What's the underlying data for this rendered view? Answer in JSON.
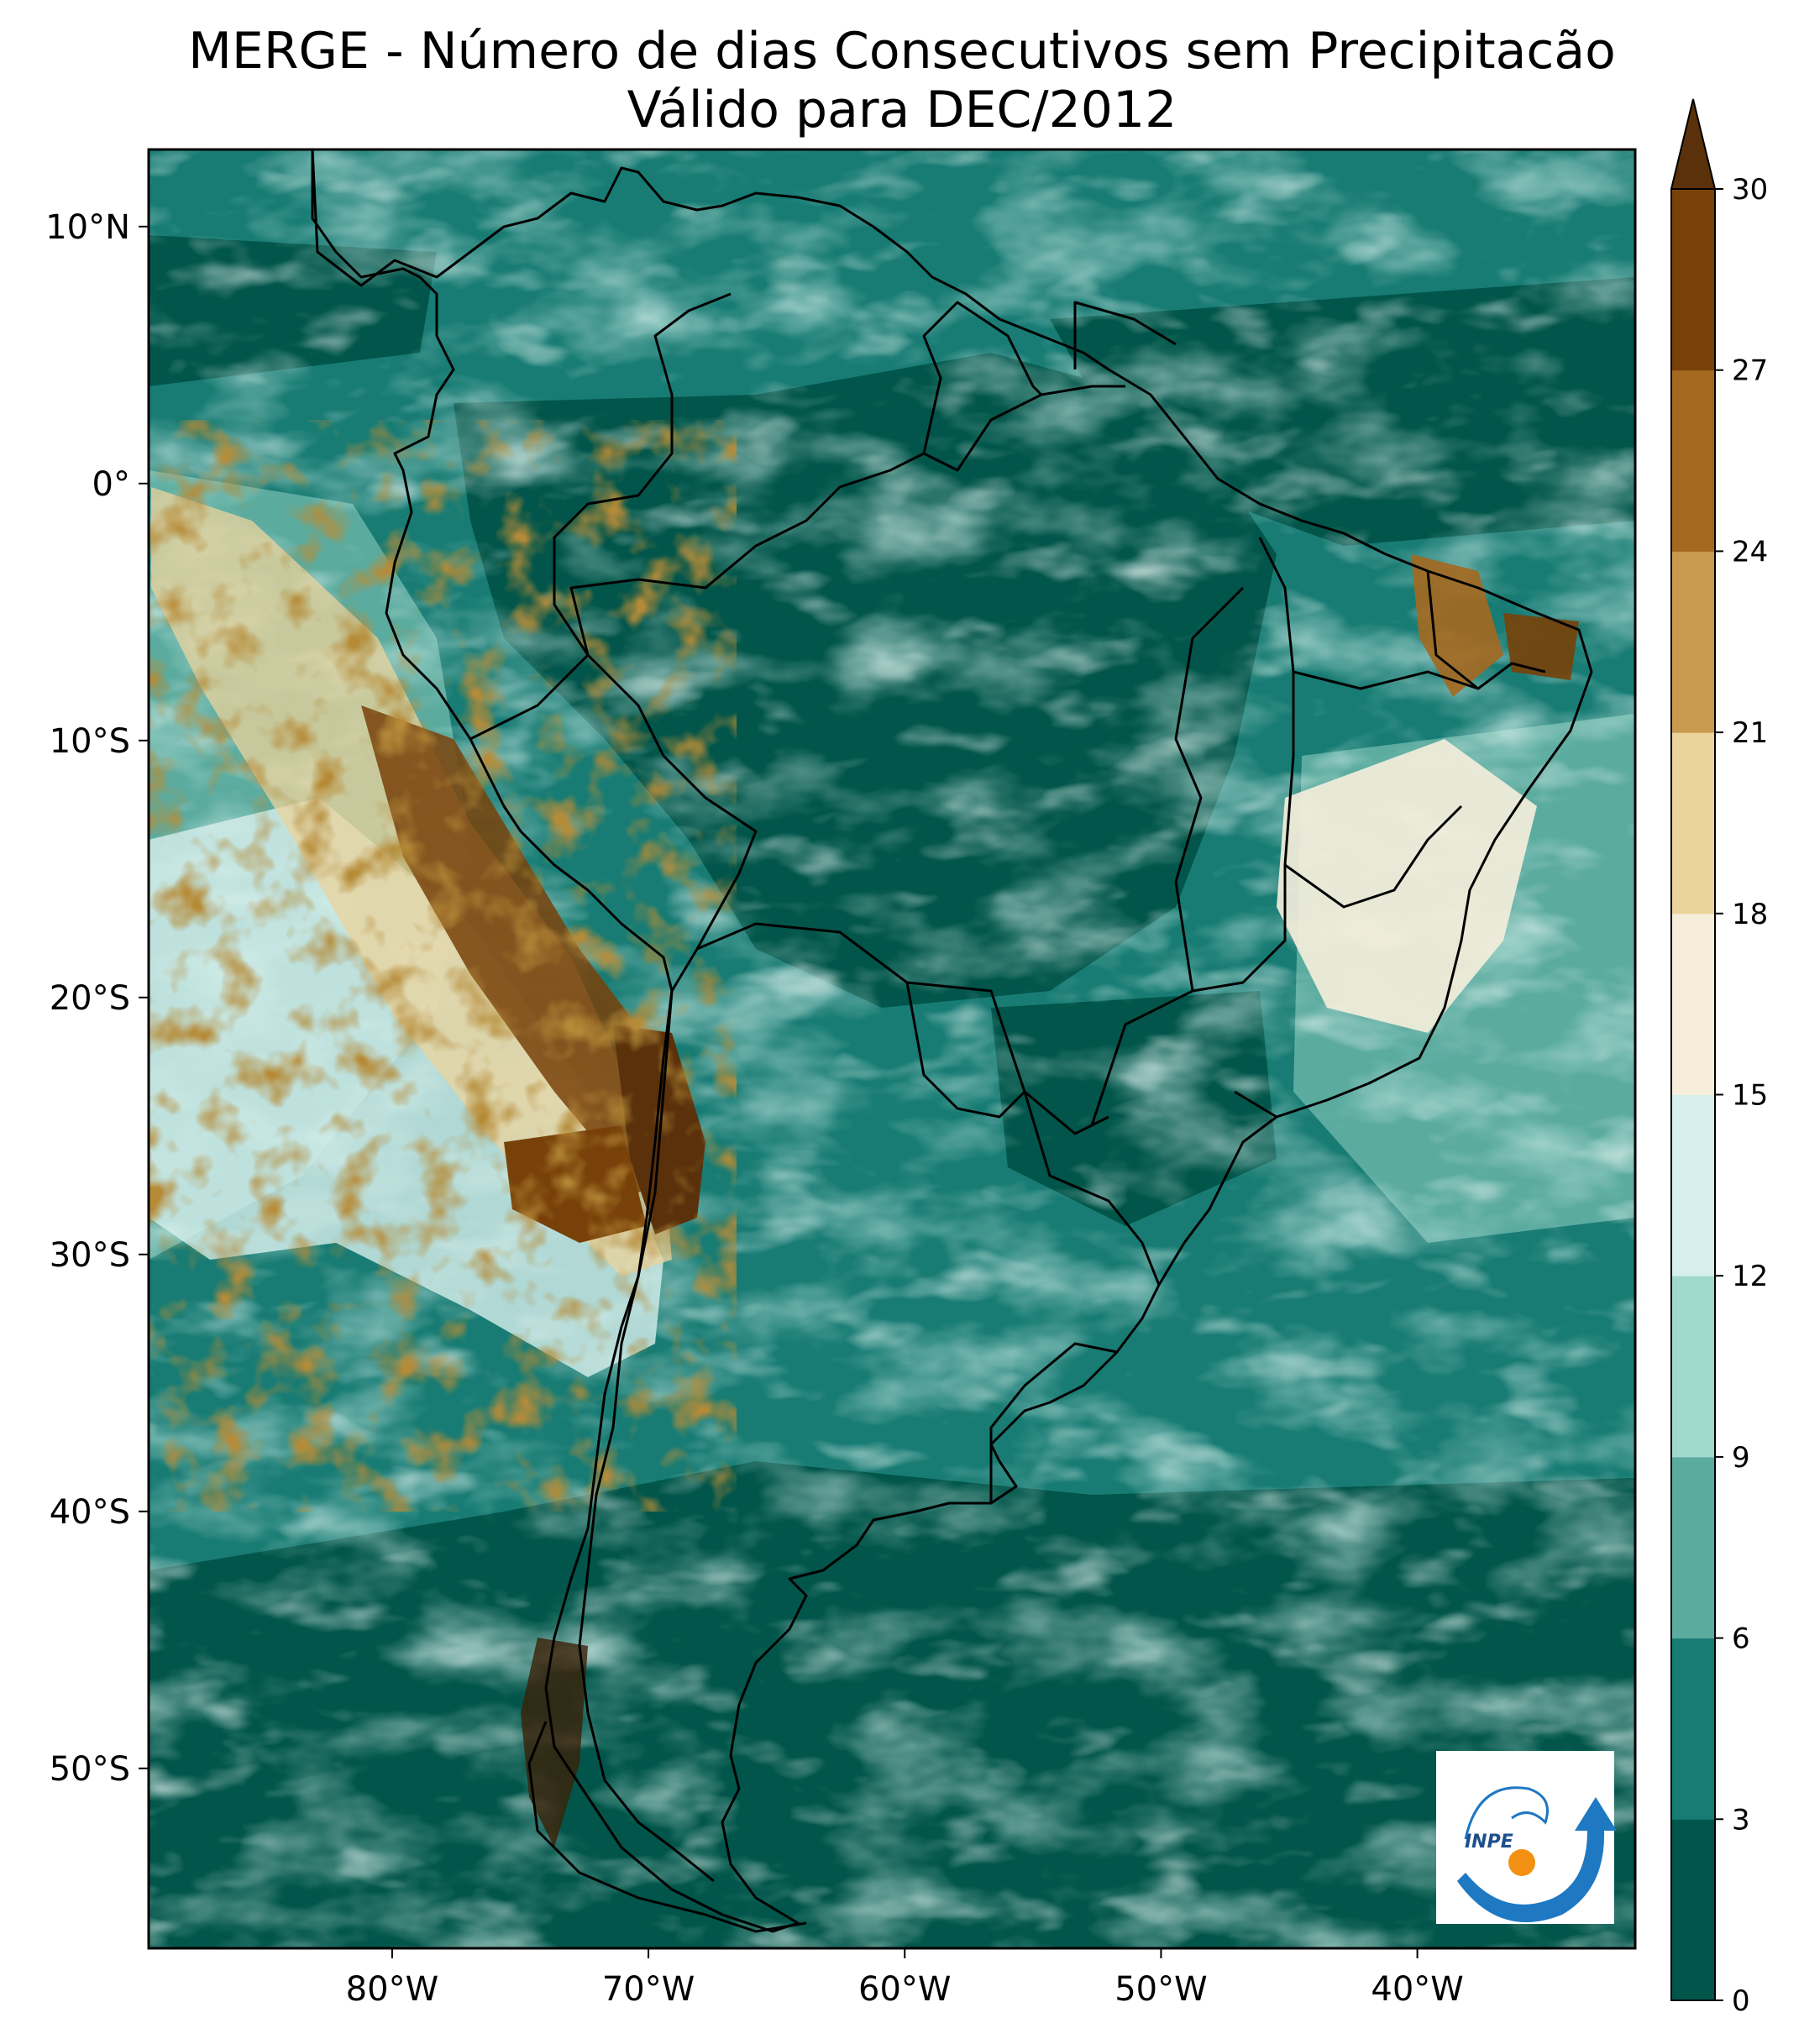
{
  "title": {
    "line1": "MERGE - Número de dias Consecutivos sem Precipitacão",
    "line2": "Válido para DEC/2012"
  },
  "map": {
    "lon_ticks": [
      "80°W",
      "70°W",
      "60°W",
      "50°W",
      "40°W"
    ],
    "lat_ticks": [
      "10°N",
      "0°",
      "10°S",
      "20°S",
      "30°S",
      "40°S",
      "50°S"
    ],
    "extent": {
      "lon_min": -89.5,
      "lon_max": -31.5,
      "lat_min": -57,
      "lat_max": 13
    },
    "border_color": "#000000"
  },
  "colorbar": {
    "ticks": [
      "0",
      "3",
      "6",
      "9",
      "12",
      "15",
      "18",
      "21",
      "24",
      "27",
      "30"
    ],
    "colors": [
      "#01554a",
      "#187c74",
      "#5bab9f",
      "#a1d8ce",
      "#d7efec",
      "#f6eedb",
      "#ebd39c",
      "#c99a4e",
      "#a5681f",
      "#784109"
    ],
    "extend_color": "#5a310b"
  },
  "logo": {
    "text": "INPE"
  }
}
